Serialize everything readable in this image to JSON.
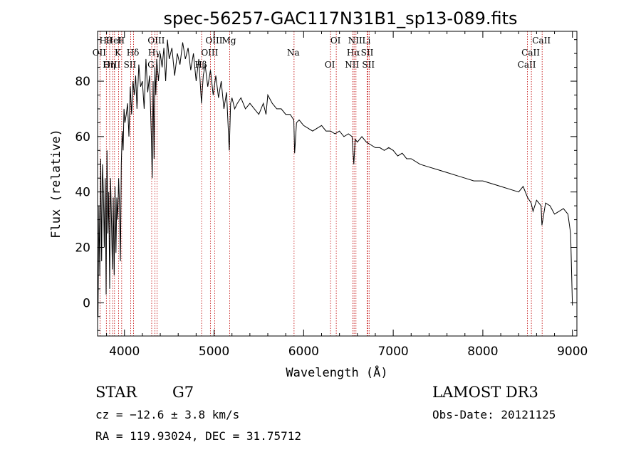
{
  "chart_data": {
    "type": "line",
    "title": "spec-56257-GAC117N31B1_sp13-089.fits",
    "xlabel": "Wavelength (Å)",
    "ylabel": "Flux (relative)",
    "xlim": [
      3700,
      9050
    ],
    "ylim": [
      -12,
      98
    ],
    "xticks": [
      4000,
      5000,
      6000,
      7000,
      8000,
      9000
    ],
    "xtick_labels": [
      "4000",
      "5000",
      "6000",
      "7000",
      "8000",
      "9000"
    ],
    "yticks": [
      0,
      20,
      40,
      60,
      80
    ],
    "ytick_labels": [
      "0",
      "20",
      "40",
      "60",
      "80"
    ],
    "grid": false,
    "series": [
      {
        "name": "spectrum",
        "x": [
          3705,
          3715,
          3725,
          3735,
          3745,
          3755,
          3765,
          3775,
          3785,
          3795,
          3805,
          3815,
          3825,
          3835,
          3845,
          3855,
          3865,
          3875,
          3885,
          3895,
          3905,
          3915,
          3925,
          3935,
          3945,
          3955,
          3965,
          3975,
          3985,
          3995,
          4005,
          4020,
          4035,
          4050,
          4065,
          4080,
          4095,
          4110,
          4125,
          4140,
          4160,
          4180,
          4200,
          4220,
          4240,
          4260,
          4280,
          4300,
          4310,
          4320,
          4330,
          4340,
          4350,
          4360,
          4380,
          4400,
          4420,
          4440,
          4460,
          4480,
          4500,
          4530,
          4560,
          4590,
          4620,
          4650,
          4680,
          4710,
          4740,
          4770,
          4800,
          4830,
          4860,
          4880,
          4900,
          4930,
          4960,
          4990,
          5020,
          5050,
          5080,
          5110,
          5140,
          5170,
          5185,
          5200,
          5230,
          5260,
          5300,
          5350,
          5400,
          5450,
          5500,
          5550,
          5580,
          5600,
          5650,
          5700,
          5750,
          5800,
          5850,
          5890,
          5900,
          5920,
          5950,
          6000,
          6050,
          6100,
          6150,
          6200,
          6250,
          6300,
          6350,
          6400,
          6450,
          6500,
          6540,
          6560,
          6575,
          6600,
          6650,
          6700,
          6750,
          6800,
          6850,
          6900,
          6950,
          7000,
          7050,
          7100,
          7150,
          7200,
          7300,
          7400,
          7500,
          7600,
          7700,
          7800,
          7900,
          8000,
          8100,
          8200,
          8300,
          8400,
          8450,
          8500,
          8540,
          8560,
          8600,
          8650,
          8660,
          8700,
          8750,
          8800,
          8850,
          8900,
          8950,
          8980,
          9000
        ],
        "values": [
          -5,
          35,
          10,
          52,
          15,
          50,
          40,
          20,
          45,
          3,
          55,
          25,
          40,
          5,
          45,
          30,
          12,
          38,
          10,
          42,
          18,
          38,
          30,
          45,
          35,
          15,
          50,
          62,
          55,
          70,
          65,
          68,
          72,
          60,
          78,
          68,
          80,
          75,
          82,
          70,
          86,
          78,
          80,
          70,
          88,
          76,
          82,
          60,
          45,
          80,
          52,
          85,
          75,
          88,
          80,
          90,
          85,
          92,
          80,
          95,
          88,
          92,
          82,
          90,
          86,
          94,
          88,
          92,
          84,
          90,
          80,
          88,
          72,
          82,
          86,
          78,
          84,
          75,
          82,
          74,
          80,
          70,
          76,
          55,
          72,
          74,
          70,
          72,
          74,
          70,
          72,
          70,
          68,
          72,
          68,
          75,
          72,
          70,
          70,
          68,
          68,
          66,
          54,
          65,
          66,
          64,
          63,
          62,
          63,
          64,
          62,
          62,
          61,
          62,
          60,
          61,
          60,
          50,
          59,
          58,
          60,
          58,
          57,
          56,
          56,
          55,
          56,
          55,
          53,
          54,
          52,
          52,
          50,
          49,
          48,
          47,
          46,
          45,
          44,
          44,
          43,
          42,
          41,
          40,
          42,
          38,
          36,
          33,
          37,
          35,
          28,
          36,
          35,
          32,
          33,
          34,
          32,
          25,
          -1
        ]
      }
    ],
    "spectral_lines": [
      {
        "name": "Hθ",
        "x": 3798
      },
      {
        "name": "OII",
        "x": 3727
      },
      {
        "name": "OIII",
        "x": 3869
      },
      {
        "name": "HeI",
        "x": 3889
      },
      {
        "name": "K",
        "x": 3934
      },
      {
        "name": "Hη",
        "x": 3835
      },
      {
        "name": "H",
        "x": 3969
      },
      {
        "name": "Hδ",
        "x": 4102
      },
      {
        "name": "SII",
        "x": 4069
      },
      {
        "name": "OIII",
        "x": 4363
      },
      {
        "name": "Hγ",
        "x": 4341
      },
      {
        "name": "G",
        "x": 4304
      },
      {
        "name": "OIII",
        "x": 5007
      },
      {
        "name": "OIII",
        "x": 4959
      },
      {
        "name": "Hβ",
        "x": 4861
      },
      {
        "name": "Mg",
        "x": 5175
      },
      {
        "name": "Na",
        "x": 5893
      },
      {
        "name": "OI",
        "x": 6300
      },
      {
        "name": "OI",
        "x": 6364
      },
      {
        "name": "Hα",
        "x": 6563
      },
      {
        "name": "NII",
        "x": 6548
      },
      {
        "name": "NII",
        "x": 6584
      },
      {
        "name": "SII",
        "x": 6717
      },
      {
        "name": "SII",
        "x": 6731
      },
      {
        "name": "Li",
        "x": 6708
      },
      {
        "name": "CaII",
        "x": 8542
      },
      {
        "name": "CaII",
        "x": 8498
      },
      {
        "name": "CaII",
        "x": 8662
      }
    ]
  },
  "info": {
    "object_class": "STAR",
    "subclass": "G7",
    "survey": "LAMOST DR3",
    "redshift": "cz = −12.6 ± 3.8 km/s",
    "obs_date": "Obs-Date: 20121125",
    "coords": "RA = 119.93024, DEC =  31.75712"
  }
}
